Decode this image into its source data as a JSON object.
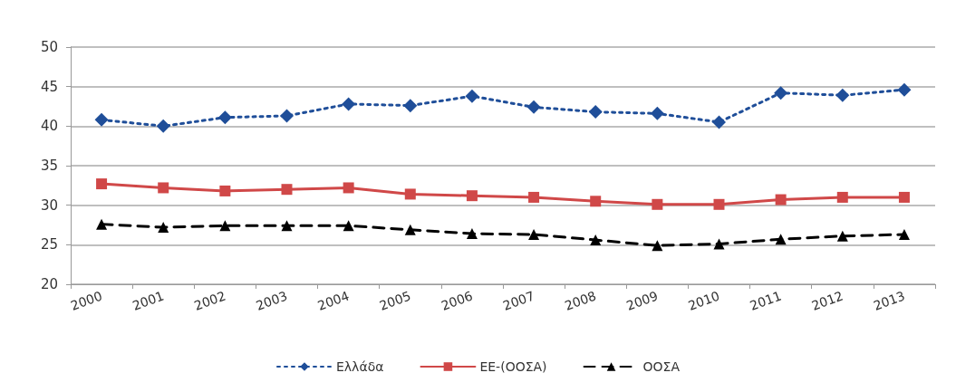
{
  "chart_data": {
    "type": "line",
    "categories": [
      "2000",
      "2001",
      "2002",
      "2003",
      "2004",
      "2005",
      "2006",
      "2007",
      "2008",
      "2009",
      "2010",
      "2011",
      "2012",
      "2013"
    ],
    "series": [
      {
        "name": "Ελλάδα",
        "color": "#1f4e99",
        "marker": "diamond",
        "line_style": "dotted",
        "values": [
          40.8,
          40.0,
          41.1,
          41.3,
          42.8,
          42.6,
          43.8,
          42.4,
          41.8,
          41.6,
          40.5,
          44.2,
          43.9,
          44.6
        ]
      },
      {
        "name": "ΕΕ-(ΟΟΣΑ)",
        "color": "#d04848",
        "marker": "square",
        "line_style": "solid",
        "values": [
          32.7,
          32.2,
          31.8,
          32.0,
          32.2,
          31.4,
          31.2,
          31.0,
          30.5,
          30.1,
          30.1,
          30.7,
          31.0,
          31.0
        ]
      },
      {
        "name": "ΟΟΣΑ",
        "color": "#000000",
        "marker": "triangle",
        "line_style": "dashed",
        "values": [
          27.6,
          27.2,
          27.4,
          27.4,
          27.4,
          26.9,
          26.4,
          26.3,
          25.6,
          24.9,
          25.1,
          25.7,
          26.1,
          26.3
        ]
      }
    ],
    "ylim": [
      20,
      50
    ],
    "yticks": [
      20,
      25,
      30,
      35,
      40,
      45,
      50
    ],
    "grid": "y",
    "legend": "bottom"
  }
}
